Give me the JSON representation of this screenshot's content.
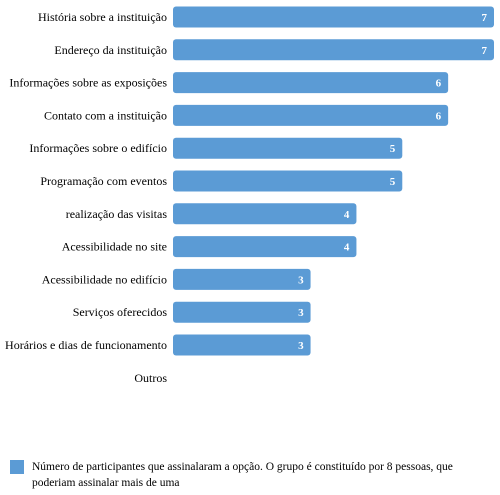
{
  "chart_data": {
    "type": "bar",
    "orientation": "horizontal",
    "categories": [
      "História sobre a instituição",
      "Endereço da instituição",
      "Informações sobre as exposições",
      "Contato com a instituição",
      "Informações sobre o edifício",
      "Programação com eventos",
      "realização das visitas",
      "Acessibilidade no site",
      "Acessibilidade no edifício",
      "Serviços oferecidos",
      "Horários e dias de funcionamento",
      "Outros"
    ],
    "series": [
      {
        "name": "Número de participantes que assinalaram a opção. O grupo é constituído por 8 pessoas, que poderiam assinalar mais de uma",
        "values": [
          7,
          7,
          6,
          6,
          5,
          5,
          4,
          4,
          3,
          3,
          3,
          0
        ]
      }
    ],
    "xlim": [
      0,
      7
    ],
    "grid": false,
    "legend_position": "bottom",
    "color": "#5b9bd5",
    "label_color": "#ffffff"
  }
}
